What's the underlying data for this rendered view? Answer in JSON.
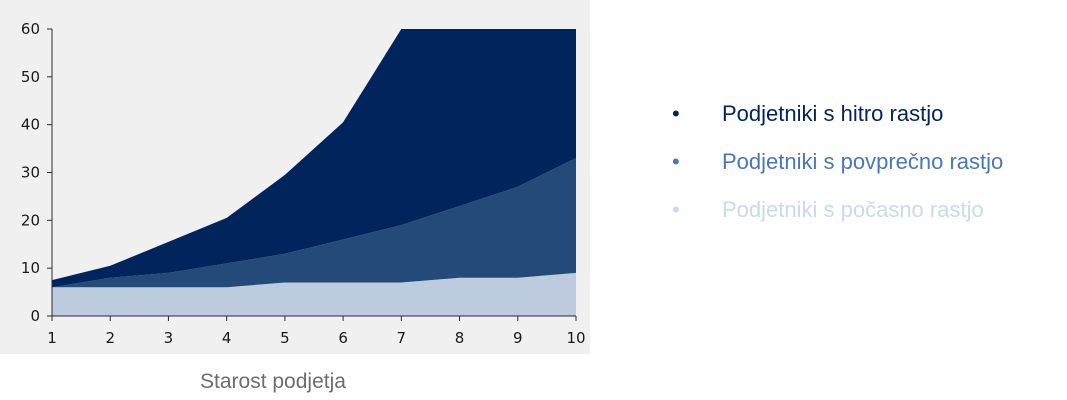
{
  "chart_data": {
    "type": "area",
    "stacked": true,
    "x": [
      1,
      2,
      3,
      4,
      5,
      6,
      7,
      8,
      9,
      10
    ],
    "series": [
      {
        "name": "Podjetniki s počasno rastjo",
        "color": "#bccbde",
        "values": [
          6,
          6,
          6,
          6,
          7,
          7,
          7,
          8,
          8,
          9
        ]
      },
      {
        "name": "Podjetniki s povprečno rastjo",
        "color": "#244a7a",
        "values": [
          0,
          2,
          3,
          5,
          6,
          9,
          12,
          15,
          19,
          24
        ]
      },
      {
        "name": "Podjetniki s hitro rastjo",
        "color": "#02245c",
        "values": [
          1.5,
          2.5,
          6.5,
          9.5,
          16.5,
          24.5,
          41,
          37,
          33,
          27
        ]
      }
    ],
    "xticks": [
      "1",
      "2",
      "3",
      "4",
      "5",
      "6",
      "7",
      "8",
      "9",
      "10"
    ],
    "yticks": [
      "0",
      "10",
      "20",
      "30",
      "40",
      "50",
      "60"
    ],
    "xlim": [
      1,
      10
    ],
    "ylim": [
      0,
      60
    ],
    "xlabel": "Starost podjetja",
    "ylabel": "",
    "title": "",
    "plot_background": "#f0f0f0",
    "grid": false,
    "legend_position": "right",
    "legend_order": [
      "Podjetniki s hitro rastjo",
      "Podjetniki s povprečno rastjo",
      "Podjetniki s počasno rastjo"
    ],
    "legend_text_colors": {
      "Podjetniki s hitro rastjo": "#02245c",
      "Podjetniki s povprečno rastjo": "#4a77b8",
      "Podjetniki s počasno rastjo": "#c9d9ee"
    }
  }
}
